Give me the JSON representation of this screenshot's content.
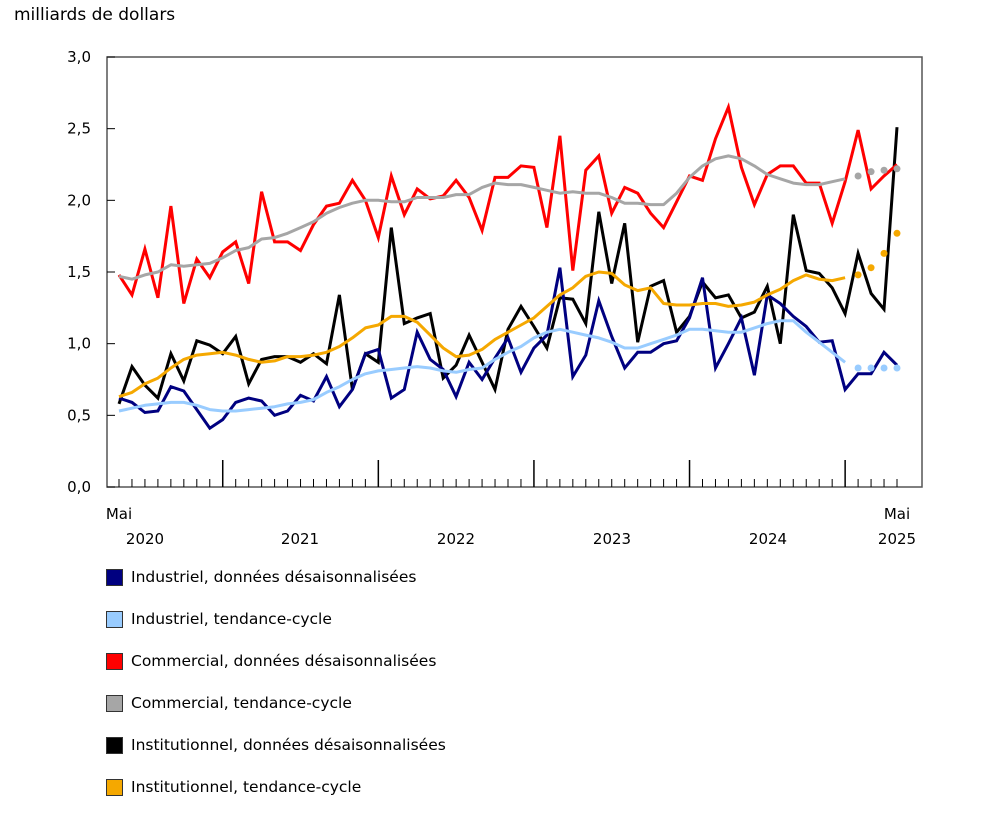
{
  "chart_data": {
    "type": "line",
    "ylabel": "milliards de dollars",
    "ylim": [
      0,
      3.0
    ],
    "yticks": [
      "0,0",
      "0,5",
      "1,0",
      "1,5",
      "2,0",
      "2,5",
      "3,0"
    ],
    "ytick_values": [
      0,
      0.5,
      1.0,
      1.5,
      2.0,
      2.5,
      3.0
    ],
    "x_labels": {
      "start_month": "Mai",
      "end_month": "Mai",
      "years": [
        "2020",
        "2021",
        "2022",
        "2023",
        "2024",
        "2025"
      ]
    },
    "x": [
      "2020-05",
      "2020-06",
      "2020-07",
      "2020-08",
      "2020-09",
      "2020-10",
      "2020-11",
      "2020-12",
      "2021-01",
      "2021-02",
      "2021-03",
      "2021-04",
      "2021-05",
      "2021-06",
      "2021-07",
      "2021-08",
      "2021-09",
      "2021-10",
      "2021-11",
      "2021-12",
      "2022-01",
      "2022-02",
      "2022-03",
      "2022-04",
      "2022-05",
      "2022-06",
      "2022-07",
      "2022-08",
      "2022-09",
      "2022-10",
      "2022-11",
      "2022-12",
      "2023-01",
      "2023-02",
      "2023-03",
      "2023-04",
      "2023-05",
      "2023-06",
      "2023-07",
      "2023-08",
      "2023-09",
      "2023-10",
      "2023-11",
      "2023-12",
      "2024-01",
      "2024-02",
      "2024-03",
      "2024-04",
      "2024-05",
      "2024-06",
      "2024-07",
      "2024-08",
      "2024-09",
      "2024-10",
      "2024-11",
      "2024-12",
      "2025-01",
      "2025-02",
      "2025-03",
      "2025-04",
      "2025-05"
    ],
    "trend_dotted_from": "2025-02",
    "grid": false,
    "legend_placement": "bottom",
    "series": [
      {
        "name": "Industriel, données désaisonnalisées",
        "color": "#000080",
        "style": "line",
        "values": [
          0.62,
          0.59,
          0.52,
          0.53,
          0.7,
          0.67,
          0.54,
          0.41,
          0.47,
          0.59,
          0.62,
          0.6,
          0.5,
          0.53,
          0.64,
          0.6,
          0.77,
          0.56,
          0.68,
          0.93,
          0.96,
          0.62,
          0.68,
          1.08,
          0.89,
          0.82,
          0.63,
          0.87,
          0.75,
          0.9,
          1.04,
          0.8,
          0.97,
          1.06,
          1.53,
          0.77,
          0.92,
          1.3,
          1.05,
          0.83,
          0.94,
          0.94,
          1.0,
          1.02,
          1.18,
          1.46,
          0.83,
          1.0,
          1.18,
          0.78,
          1.34,
          1.28,
          1.19,
          1.12,
          1.01,
          1.02,
          0.68,
          0.79,
          0.79,
          0.94,
          0.85
        ]
      },
      {
        "name": "Industriel, tendance-cycle",
        "color": "#99ccff",
        "style": "trend",
        "values": [
          0.53,
          0.55,
          0.57,
          0.58,
          0.59,
          0.59,
          0.57,
          0.54,
          0.53,
          0.53,
          0.54,
          0.55,
          0.56,
          0.58,
          0.59,
          0.61,
          0.66,
          0.7,
          0.75,
          0.79,
          0.81,
          0.82,
          0.83,
          0.84,
          0.83,
          0.81,
          0.8,
          0.82,
          0.83,
          0.89,
          0.94,
          0.98,
          1.04,
          1.08,
          1.1,
          1.08,
          1.06,
          1.04,
          1.01,
          0.97,
          0.97,
          1.0,
          1.03,
          1.06,
          1.1,
          1.1,
          1.09,
          1.08,
          1.08,
          1.11,
          1.14,
          1.16,
          1.16,
          1.08,
          1.01,
          0.94,
          0.87,
          0.83,
          0.83,
          0.83,
          0.83
        ]
      },
      {
        "name": "Commercial, données désaisonnalisées",
        "color": "#ff0000",
        "style": "line",
        "values": [
          1.48,
          1.34,
          1.66,
          1.32,
          1.96,
          1.28,
          1.59,
          1.46,
          1.64,
          1.71,
          1.42,
          2.06,
          1.71,
          1.71,
          1.65,
          1.83,
          1.96,
          1.98,
          2.14,
          2.0,
          1.74,
          2.17,
          1.9,
          2.08,
          2.01,
          2.03,
          2.14,
          2.02,
          1.79,
          2.16,
          2.16,
          2.24,
          2.23,
          1.81,
          2.45,
          1.51,
          2.21,
          2.31,
          1.91,
          2.09,
          2.05,
          1.91,
          1.81,
          1.99,
          2.17,
          2.14,
          2.43,
          2.65,
          2.23,
          1.97,
          2.18,
          2.24,
          2.24,
          2.12,
          2.12,
          1.84,
          2.13,
          2.49,
          2.08,
          2.17,
          2.25
        ]
      },
      {
        "name": "Commercial, tendance-cycle",
        "color": "#a6a6a6",
        "style": "trend",
        "values": [
          1.47,
          1.45,
          1.48,
          1.5,
          1.55,
          1.54,
          1.55,
          1.56,
          1.6,
          1.65,
          1.67,
          1.73,
          1.74,
          1.77,
          1.81,
          1.85,
          1.91,
          1.95,
          1.98,
          2.0,
          2.0,
          1.99,
          1.99,
          2.02,
          2.02,
          2.02,
          2.04,
          2.04,
          2.09,
          2.12,
          2.11,
          2.11,
          2.09,
          2.07,
          2.05,
          2.06,
          2.05,
          2.05,
          2.02,
          1.98,
          1.98,
          1.97,
          1.97,
          2.05,
          2.16,
          2.24,
          2.29,
          2.31,
          2.29,
          2.24,
          2.18,
          2.15,
          2.12,
          2.11,
          2.11,
          2.13,
          2.15,
          2.17,
          2.2,
          2.21,
          2.22
        ]
      },
      {
        "name": "Institutionnel, données désaisonnalisées",
        "color": "#000000",
        "style": "line",
        "values": [
          0.58,
          0.84,
          0.71,
          0.62,
          0.93,
          0.74,
          1.02,
          0.99,
          0.93,
          1.05,
          0.72,
          0.89,
          0.91,
          0.91,
          0.87,
          0.93,
          0.86,
          1.34,
          0.68,
          0.93,
          0.87,
          1.81,
          1.14,
          1.18,
          1.21,
          0.76,
          0.85,
          1.06,
          0.87,
          0.68,
          1.1,
          1.26,
          1.12,
          0.97,
          1.32,
          1.31,
          1.14,
          1.92,
          1.42,
          1.84,
          1.01,
          1.4,
          1.44,
          1.08,
          1.19,
          1.43,
          1.32,
          1.34,
          1.18,
          1.22,
          1.4,
          1.0,
          1.9,
          1.51,
          1.49,
          1.39,
          1.21,
          1.63,
          1.35,
          1.24,
          2.51
        ]
      },
      {
        "name": "Institutionnel, tendance-cycle",
        "color": "#f5a800",
        "style": "trend",
        "values": [
          0.63,
          0.66,
          0.72,
          0.76,
          0.83,
          0.89,
          0.92,
          0.93,
          0.94,
          0.92,
          0.89,
          0.87,
          0.88,
          0.91,
          0.91,
          0.92,
          0.94,
          0.98,
          1.04,
          1.11,
          1.13,
          1.19,
          1.19,
          1.15,
          1.06,
          0.97,
          0.91,
          0.92,
          0.96,
          1.03,
          1.08,
          1.13,
          1.18,
          1.26,
          1.34,
          1.39,
          1.47,
          1.5,
          1.49,
          1.41,
          1.37,
          1.39,
          1.28,
          1.27,
          1.27,
          1.28,
          1.28,
          1.26,
          1.27,
          1.29,
          1.34,
          1.38,
          1.44,
          1.48,
          1.45,
          1.44,
          1.46,
          1.48,
          1.53,
          1.63,
          1.77
        ]
      }
    ]
  }
}
